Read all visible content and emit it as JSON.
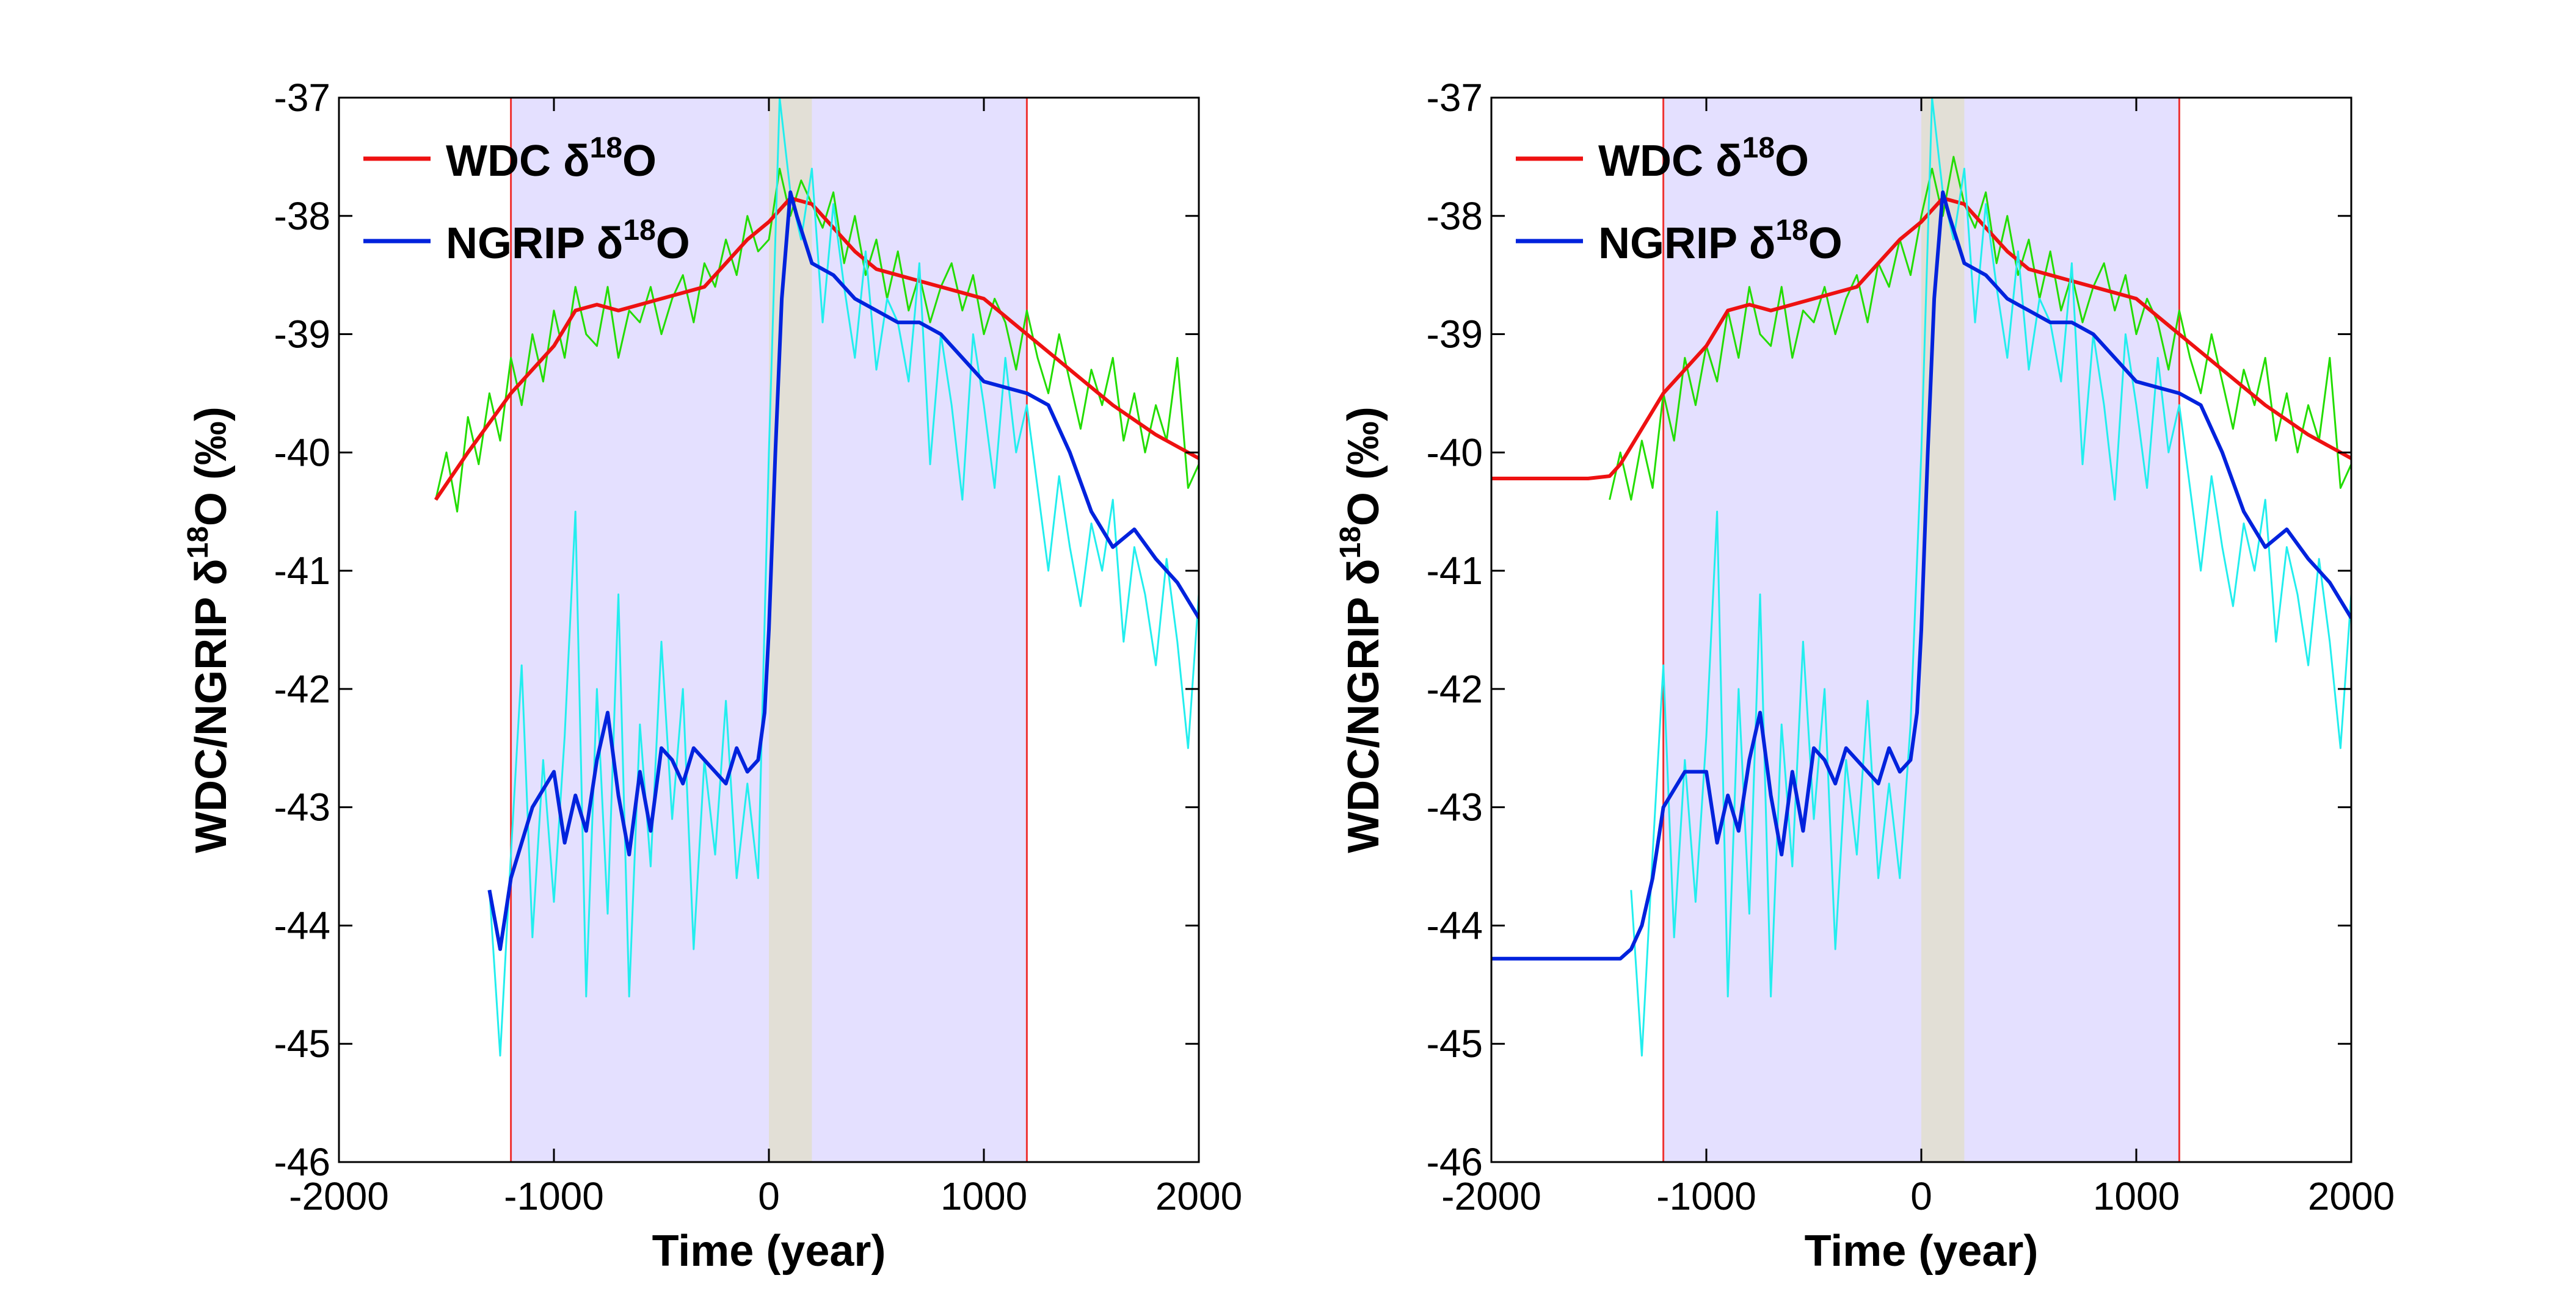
{
  "colors": {
    "wdc_smooth": "#ee1111",
    "wdc_raw": "#22dd00",
    "ngrip_smooth": "#0022dd",
    "ngrip_raw": "#22eeee",
    "window_fill": "#e4e0ff",
    "window_edge": "#ee3333",
    "transition_fill": "#e2dfd6"
  },
  "chart_data": [
    {
      "type": "line",
      "xlabel": "Time (year)",
      "ylabel": {
        "prefix": "WDC/NGRIP  ",
        "delta": "δ",
        "sup": "18",
        "suffix": "O (‰)"
      },
      "xlim": [
        -2000,
        2000
      ],
      "ylim": [
        -46,
        -37
      ],
      "xticks": [
        "-2000",
        "-1000",
        "0",
        "1000",
        "2000"
      ],
      "yticks": [
        "-37",
        "-38",
        "-39",
        "-40",
        "-41",
        "-42",
        "-43",
        "-44",
        "-45",
        "-46"
      ],
      "legend_position": "top-left",
      "legend": [
        {
          "prefix": "WDC ",
          "delta": "δ",
          "sup": "18",
          "suffix": "O"
        },
        {
          "prefix": "NGRIP ",
          "delta": "δ",
          "sup": "18",
          "suffix": "O"
        }
      ],
      "shaded_window": [
        -1200,
        1200
      ],
      "transition_band": [
        0,
        200
      ],
      "series": [
        {
          "key": "wdc_raw",
          "width": 3,
          "x": [
            -1550,
            -1500,
            -1450,
            -1400,
            -1350,
            -1300,
            -1250,
            -1200,
            -1150,
            -1100,
            -1050,
            -1000,
            -950,
            -900,
            -850,
            -800,
            -750,
            -700,
            -650,
            -600,
            -550,
            -500,
            -450,
            -400,
            -350,
            -300,
            -250,
            -200,
            -150,
            -100,
            -50,
            0,
            50,
            100,
            150,
            200,
            250,
            300,
            350,
            400,
            450,
            500,
            550,
            600,
            650,
            700,
            750,
            800,
            850,
            900,
            950,
            1000,
            1050,
            1100,
            1150,
            1200,
            1250,
            1300,
            1350,
            1400,
            1450,
            1500,
            1550,
            1600,
            1650,
            1700,
            1750,
            1800,
            1850,
            1900,
            1950,
            2000
          ],
          "y": [
            -40.4,
            -40.0,
            -40.5,
            -39.7,
            -40.1,
            -39.5,
            -39.9,
            -39.2,
            -39.6,
            -39.0,
            -39.4,
            -38.8,
            -39.2,
            -38.6,
            -39.0,
            -39.1,
            -38.6,
            -39.2,
            -38.8,
            -38.9,
            -38.6,
            -39.0,
            -38.7,
            -38.5,
            -38.9,
            -38.4,
            -38.6,
            -38.2,
            -38.5,
            -38.0,
            -38.3,
            -38.2,
            -37.6,
            -38.0,
            -37.7,
            -37.9,
            -38.1,
            -37.8,
            -38.4,
            -38.0,
            -38.5,
            -38.2,
            -38.7,
            -38.3,
            -38.8,
            -38.5,
            -38.9,
            -38.6,
            -38.4,
            -38.8,
            -38.5,
            -39.0,
            -38.7,
            -38.9,
            -39.3,
            -38.8,
            -39.2,
            -39.5,
            -39.0,
            -39.4,
            -39.8,
            -39.3,
            -39.6,
            -39.2,
            -39.9,
            -39.5,
            -40.0,
            -39.6,
            -39.9,
            -39.2,
            -40.3,
            -40.1
          ]
        },
        {
          "key": "wdc_smooth",
          "width": 6,
          "x": [
            -1550,
            -1400,
            -1200,
            -1000,
            -900,
            -800,
            -700,
            -500,
            -300,
            -200,
            -100,
            0,
            100,
            200,
            300,
            400,
            500,
            600,
            700,
            800,
            900,
            1000,
            1200,
            1400,
            1600,
            1800,
            2000
          ],
          "y": [
            -40.4,
            -40.0,
            -39.5,
            -39.1,
            -38.8,
            -38.75,
            -38.8,
            -38.7,
            -38.6,
            -38.4,
            -38.2,
            -38.05,
            -37.85,
            -37.9,
            -38.1,
            -38.3,
            -38.45,
            -38.5,
            -38.55,
            -38.6,
            -38.65,
            -38.7,
            -39.0,
            -39.3,
            -39.6,
            -39.85,
            -40.05
          ]
        },
        {
          "key": "ngrip_raw",
          "width": 3,
          "x": [
            -1300,
            -1250,
            -1200,
            -1150,
            -1100,
            -1050,
            -1000,
            -950,
            -900,
            -850,
            -800,
            -750,
            -700,
            -650,
            -600,
            -550,
            -500,
            -450,
            -400,
            -350,
            -300,
            -250,
            -200,
            -150,
            -100,
            -50,
            0,
            50,
            100,
            150,
            200,
            250,
            300,
            350,
            400,
            450,
            500,
            550,
            600,
            650,
            700,
            750,
            800,
            850,
            900,
            950,
            1000,
            1050,
            1100,
            1150,
            1200,
            1250,
            1300,
            1350,
            1400,
            1450,
            1500,
            1550,
            1600,
            1650,
            1700,
            1750,
            1800,
            1850,
            1900,
            1950,
            2000
          ],
          "y": [
            -43.7,
            -45.1,
            -43.4,
            -41.8,
            -44.1,
            -42.6,
            -43.8,
            -42.4,
            -40.5,
            -44.6,
            -42.0,
            -43.9,
            -41.2,
            -44.6,
            -42.3,
            -43.5,
            -41.6,
            -43.1,
            -42.0,
            -44.2,
            -42.6,
            -43.4,
            -42.1,
            -43.6,
            -42.8,
            -43.6,
            -40.0,
            -37.0,
            -37.8,
            -38.2,
            -37.6,
            -38.9,
            -37.9,
            -38.6,
            -39.2,
            -38.3,
            -39.3,
            -38.7,
            -38.9,
            -39.4,
            -38.4,
            -40.1,
            -39.0,
            -39.6,
            -40.4,
            -39.0,
            -39.6,
            -40.3,
            -39.2,
            -40.0,
            -39.6,
            -40.3,
            -41.0,
            -40.2,
            -40.8,
            -41.3,
            -40.6,
            -41.0,
            -40.4,
            -41.6,
            -40.8,
            -41.2,
            -41.8,
            -40.9,
            -41.6,
            -42.5,
            -41.2
          ]
        },
        {
          "key": "ngrip_smooth",
          "width": 6,
          "x": [
            -1300,
            -1250,
            -1200,
            -1100,
            -1000,
            -950,
            -900,
            -850,
            -800,
            -750,
            -700,
            -650,
            -600,
            -550,
            -500,
            -450,
            -400,
            -350,
            -300,
            -250,
            -200,
            -150,
            -100,
            -50,
            -20,
            0,
            30,
            60,
            100,
            130,
            200,
            300,
            400,
            500,
            600,
            700,
            800,
            900,
            1000,
            1100,
            1200,
            1300,
            1400,
            1500,
            1600,
            1700,
            1800,
            1900,
            2000
          ],
          "y": [
            -43.7,
            -44.2,
            -43.6,
            -43.0,
            -42.7,
            -43.3,
            -42.9,
            -43.2,
            -42.6,
            -42.2,
            -42.9,
            -43.4,
            -42.7,
            -43.2,
            -42.5,
            -42.6,
            -42.8,
            -42.5,
            -42.6,
            -42.7,
            -42.8,
            -42.5,
            -42.7,
            -42.6,
            -42.2,
            -41.5,
            -40.0,
            -38.7,
            -37.8,
            -38.0,
            -38.4,
            -38.5,
            -38.7,
            -38.8,
            -38.9,
            -38.9,
            -39.0,
            -39.2,
            -39.4,
            -39.45,
            -39.5,
            -39.6,
            -40.0,
            -40.5,
            -40.8,
            -40.65,
            -40.9,
            -41.1,
            -41.4
          ]
        }
      ]
    },
    {
      "type": "line",
      "xlabel": "Time (year)",
      "ylabel": {
        "prefix": "WDC/NGRIP  ",
        "delta": "δ",
        "sup": "18",
        "suffix": "O (‰)"
      },
      "xlim": [
        -2000,
        2000
      ],
      "ylim": [
        -46,
        -37
      ],
      "xticks": [
        "-2000",
        "-1000",
        "0",
        "1000",
        "2000"
      ],
      "yticks": [
        "-37",
        "-38",
        "-39",
        "-40",
        "-41",
        "-42",
        "-43",
        "-44",
        "-45",
        "-46"
      ],
      "legend_position": "top-left",
      "legend": [
        {
          "prefix": "WDC ",
          "delta": "δ",
          "sup": "18",
          "suffix": "O"
        },
        {
          "prefix": "NGRIP ",
          "delta": "δ",
          "sup": "18",
          "suffix": "O"
        }
      ],
      "shaded_window": [
        -1200,
        1200
      ],
      "transition_band": [
        0,
        200
      ],
      "series": [
        {
          "key": "wdc_raw",
          "width": 3,
          "x": [
            -1450,
            -1400,
            -1350,
            -1300,
            -1250,
            -1200,
            -1150,
            -1100,
            -1050,
            -1000,
            -950,
            -900,
            -850,
            -800,
            -750,
            -700,
            -650,
            -600,
            -550,
            -500,
            -450,
            -400,
            -350,
            -300,
            -250,
            -200,
            -150,
            -100,
            -50,
            0,
            50,
            100,
            150,
            200,
            250,
            300,
            350,
            400,
            450,
            500,
            550,
            600,
            650,
            700,
            750,
            800,
            850,
            900,
            950,
            1000,
            1050,
            1100,
            1150,
            1200,
            1250,
            1300,
            1350,
            1400,
            1450,
            1500,
            1550,
            1600,
            1650,
            1700,
            1750,
            1800,
            1850,
            1900,
            1950,
            2000
          ],
          "y": [
            -40.4,
            -40.0,
            -40.4,
            -39.9,
            -40.3,
            -39.5,
            -39.9,
            -39.2,
            -39.6,
            -39.1,
            -39.4,
            -38.8,
            -39.2,
            -38.6,
            -39.0,
            -39.1,
            -38.6,
            -39.2,
            -38.8,
            -38.9,
            -38.6,
            -39.0,
            -38.7,
            -38.5,
            -38.9,
            -38.4,
            -38.6,
            -38.2,
            -38.5,
            -38.0,
            -37.6,
            -38.0,
            -37.5,
            -37.9,
            -38.1,
            -37.8,
            -38.4,
            -38.0,
            -38.5,
            -38.2,
            -38.7,
            -38.3,
            -38.8,
            -38.5,
            -38.9,
            -38.6,
            -38.4,
            -38.8,
            -38.5,
            -39.0,
            -38.7,
            -38.9,
            -39.3,
            -38.8,
            -39.2,
            -39.5,
            -39.0,
            -39.4,
            -39.8,
            -39.3,
            -39.6,
            -39.2,
            -39.9,
            -39.5,
            -40.0,
            -39.6,
            -39.9,
            -39.2,
            -40.3,
            -40.1
          ]
        },
        {
          "key": "wdc_smooth",
          "width": 6,
          "x": [
            -2000,
            -1550,
            -1450,
            -1400,
            -1200,
            -1000,
            -900,
            -800,
            -700,
            -500,
            -300,
            -200,
            -100,
            0,
            100,
            200,
            300,
            400,
            500,
            600,
            700,
            800,
            900,
            1000,
            1200,
            1400,
            1600,
            1800,
            2000
          ],
          "y": [
            -40.22,
            -40.22,
            -40.2,
            -40.1,
            -39.5,
            -39.1,
            -38.8,
            -38.75,
            -38.8,
            -38.7,
            -38.6,
            -38.4,
            -38.2,
            -38.05,
            -37.85,
            -37.9,
            -38.1,
            -38.3,
            -38.45,
            -38.5,
            -38.55,
            -38.6,
            -38.65,
            -38.7,
            -39.0,
            -39.3,
            -39.6,
            -39.85,
            -40.05
          ]
        },
        {
          "key": "ngrip_raw",
          "width": 3,
          "x": [
            -1350,
            -1300,
            -1250,
            -1200,
            -1150,
            -1100,
            -1050,
            -1000,
            -950,
            -900,
            -850,
            -800,
            -750,
            -700,
            -650,
            -600,
            -550,
            -500,
            -450,
            -400,
            -350,
            -300,
            -250,
            -200,
            -150,
            -100,
            -50,
            0,
            50,
            100,
            150,
            200,
            250,
            300,
            350,
            400,
            450,
            500,
            550,
            600,
            650,
            700,
            750,
            800,
            850,
            900,
            950,
            1000,
            1050,
            1100,
            1150,
            1200,
            1250,
            1300,
            1350,
            1400,
            1450,
            1500,
            1550,
            1600,
            1650,
            1700,
            1750,
            1800,
            1850,
            1900,
            1950,
            2000
          ],
          "y": [
            -43.7,
            -45.1,
            -43.4,
            -41.8,
            -44.1,
            -42.6,
            -43.8,
            -42.4,
            -40.5,
            -44.6,
            -42.0,
            -43.9,
            -41.2,
            -44.6,
            -42.3,
            -43.5,
            -41.6,
            -43.1,
            -42.0,
            -44.2,
            -42.6,
            -43.4,
            -42.1,
            -43.6,
            -42.8,
            -43.6,
            -42.3,
            -40.0,
            -37.0,
            -37.8,
            -38.2,
            -37.6,
            -38.9,
            -37.9,
            -38.6,
            -39.2,
            -38.3,
            -39.3,
            -38.7,
            -38.9,
            -39.4,
            -38.4,
            -40.1,
            -39.0,
            -39.6,
            -40.4,
            -39.0,
            -39.6,
            -40.3,
            -39.2,
            -40.0,
            -39.6,
            -40.3,
            -41.0,
            -40.2,
            -40.8,
            -41.3,
            -40.6,
            -41.0,
            -40.4,
            -41.6,
            -40.8,
            -41.2,
            -41.8,
            -40.9,
            -41.6,
            -42.5,
            -41.2
          ]
        },
        {
          "key": "ngrip_smooth",
          "width": 6,
          "x": [
            -2000,
            -1400,
            -1350,
            -1300,
            -1250,
            -1200,
            -1100,
            -1000,
            -950,
            -900,
            -850,
            -800,
            -750,
            -700,
            -650,
            -600,
            -550,
            -500,
            -450,
            -400,
            -350,
            -300,
            -250,
            -200,
            -150,
            -100,
            -50,
            -20,
            0,
            30,
            60,
            100,
            130,
            200,
            300,
            400,
            500,
            600,
            700,
            800,
            900,
            1000,
            1100,
            1200,
            1300,
            1400,
            1500,
            1600,
            1700,
            1800,
            1900,
            2000
          ],
          "y": [
            -44.28,
            -44.28,
            -44.2,
            -44.0,
            -43.6,
            -43.0,
            -42.7,
            -42.7,
            -43.3,
            -42.9,
            -43.2,
            -42.6,
            -42.2,
            -42.9,
            -43.4,
            -42.7,
            -43.2,
            -42.5,
            -42.6,
            -42.8,
            -42.5,
            -42.6,
            -42.7,
            -42.8,
            -42.5,
            -42.7,
            -42.6,
            -42.2,
            -41.5,
            -40.0,
            -38.7,
            -37.8,
            -38.0,
            -38.4,
            -38.5,
            -38.7,
            -38.8,
            -38.9,
            -38.9,
            -39.0,
            -39.2,
            -39.4,
            -39.45,
            -39.5,
            -39.6,
            -40.0,
            -40.5,
            -40.8,
            -40.65,
            -40.9,
            -41.1,
            -41.4
          ]
        }
      ]
    }
  ]
}
